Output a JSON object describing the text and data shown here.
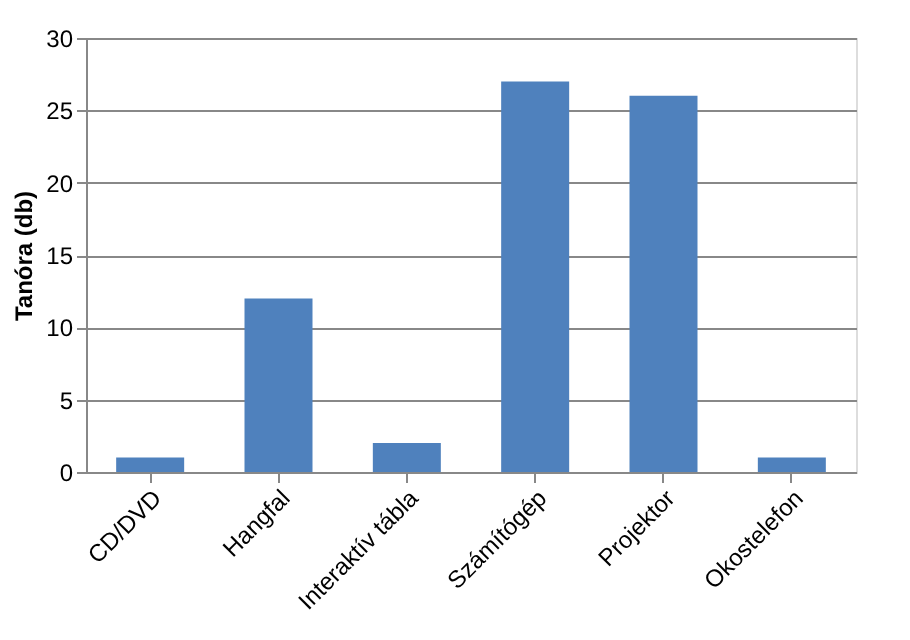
{
  "chart_data": {
    "type": "bar",
    "ylabel": "Tanóra (db)",
    "categories": [
      "CD/DVD",
      "Hangfal",
      "Interaktív tábla",
      "Számítógép",
      "Projektor",
      "Okostelefon"
    ],
    "values": [
      1,
      12,
      2,
      27,
      26,
      1
    ],
    "color": "#4f81bd",
    "ylim": [
      0,
      30
    ],
    "yticks": [
      0,
      5,
      10,
      15,
      20,
      25,
      30
    ],
    "grid": "y"
  }
}
